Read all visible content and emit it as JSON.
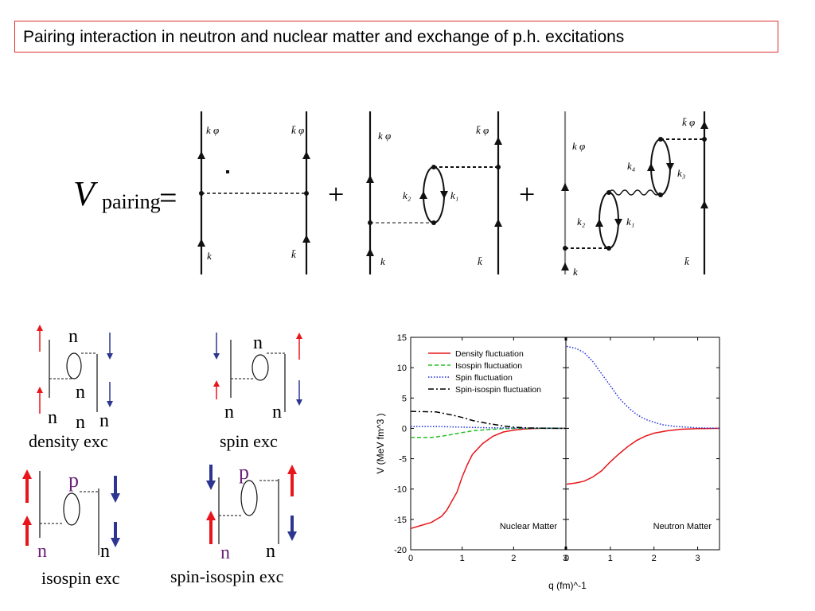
{
  "title": "Pairing  interaction in neutron and nuclear matter and exchange of p.h. excitations",
  "diagram": {
    "v_letter": "V",
    "v_sub": "pairing",
    "equals": "=",
    "plus": "+",
    "labels": {
      "k_phi": "k φ",
      "kbar_phi": "k̄ φ",
      "k": "k",
      "kbar": "k̄",
      "k1": "k₁",
      "k2": "k₂",
      "k3": "k₃",
      "k4": "k₄"
    }
  },
  "excitations": [
    {
      "name": "density exc",
      "labels": [
        "n",
        "n",
        "n",
        "n",
        "n"
      ]
    },
    {
      "name": "spin exc",
      "labels": [
        "n",
        "n",
        "n"
      ]
    },
    {
      "name": "isospin exc",
      "labels": [
        "p",
        "n",
        "n"
      ]
    },
    {
      "name": "spin-isospin exc",
      "labels": [
        "p",
        "n",
        "n"
      ]
    }
  ],
  "colors": {
    "red": "#e8161b",
    "blue": "#2c3590",
    "purple": "#6b1f7a",
    "title_border": "#e03030"
  },
  "chart_data": {
    "type": "line",
    "ylabel": "V (MeV fm^3 )",
    "xlabel": "q (fm)^-1",
    "ylim": [
      -20,
      15
    ],
    "yticks": [
      "15",
      "10",
      "5",
      "0",
      "-5",
      "-10",
      "-15",
      "-20"
    ],
    "grid": false,
    "legend": "top-left",
    "legend_entries": [
      "Density fluctuation",
      "Isospin fluctuation",
      "Spin fluctuation",
      "Spin-isospin fluctuation"
    ],
    "panels": [
      {
        "label": "Nuclear Matter",
        "xlim": [
          0,
          3
        ],
        "xticks": [
          "0",
          "1",
          "2",
          "3"
        ],
        "series": [
          {
            "name": "Density fluctuation",
            "color": "#e8161b",
            "dash": "",
            "x": [
              0,
              0.2,
              0.4,
              0.6,
              0.7,
              0.8,
              0.9,
              1.0,
              1.1,
              1.2,
              1.4,
              1.6,
              1.8,
              2.0,
              2.2,
              2.5,
              3.0
            ],
            "y": [
              -16.5,
              -16.0,
              -15.5,
              -14.5,
              -13.5,
              -12.0,
              -10.5,
              -8.0,
              -6.0,
              -4.3,
              -2.5,
              -1.3,
              -0.6,
              -0.3,
              -0.1,
              0,
              0
            ]
          },
          {
            "name": "Isospin fluctuation",
            "color": "#22c022",
            "dash": "5,3",
            "x": [
              0,
              0.4,
              0.6,
              0.8,
              1.0,
              1.2,
              1.5,
              1.8,
              2.2,
              3.0
            ],
            "y": [
              -1.5,
              -1.5,
              -1.3,
              -1.0,
              -0.7,
              -0.4,
              -0.2,
              -0.05,
              0,
              0
            ]
          },
          {
            "name": "Spin fluctuation",
            "color": "#1f2fd6",
            "dash": "1.5,2",
            "x": [
              0,
              0.5,
              1.0,
              1.5,
              2.0,
              3.0
            ],
            "y": [
              0.3,
              0.3,
              0.2,
              0.1,
              0.05,
              0
            ]
          },
          {
            "name": "Spin-isospin fluctuation",
            "color": "#000000",
            "dash": "7,3,2,3",
            "x": [
              0,
              0.5,
              0.8,
              1.0,
              1.2,
              1.5,
              1.8,
              2.0,
              2.3,
              3.0
            ],
            "y": [
              2.8,
              2.7,
              2.2,
              1.8,
              1.3,
              0.8,
              0.4,
              0.2,
              0.05,
              0
            ]
          }
        ]
      },
      {
        "label": "Neutron Matter",
        "xlim": [
          0,
          3.5
        ],
        "xticks": [
          "0",
          "1",
          "2",
          "3"
        ],
        "series": [
          {
            "name": "Density fluctuation",
            "color": "#e8161b",
            "dash": "",
            "x": [
              0,
              0.2,
              0.4,
              0.6,
              0.8,
              1.0,
              1.2,
              1.4,
              1.6,
              1.8,
              2.0,
              2.3,
              2.6,
              3.0,
              3.5
            ],
            "y": [
              -9.2,
              -9.0,
              -8.7,
              -8.0,
              -7.0,
              -5.5,
              -4.2,
              -3.0,
              -2.0,
              -1.3,
              -0.8,
              -0.4,
              -0.15,
              -0.05,
              0
            ]
          },
          {
            "name": "Spin fluctuation",
            "color": "#1f2fd6",
            "dash": "1.5,2",
            "x": [
              0,
              0.2,
              0.4,
              0.6,
              0.8,
              1.0,
              1.2,
              1.4,
              1.6,
              1.8,
              2.0,
              2.2,
              2.5,
              3.0,
              3.5
            ],
            "y": [
              13.5,
              13.2,
              12.5,
              11.0,
              9.0,
              7.0,
              5.0,
              3.5,
              2.3,
              1.5,
              1.0,
              0.6,
              0.3,
              0.1,
              0
            ]
          }
        ]
      }
    ]
  }
}
